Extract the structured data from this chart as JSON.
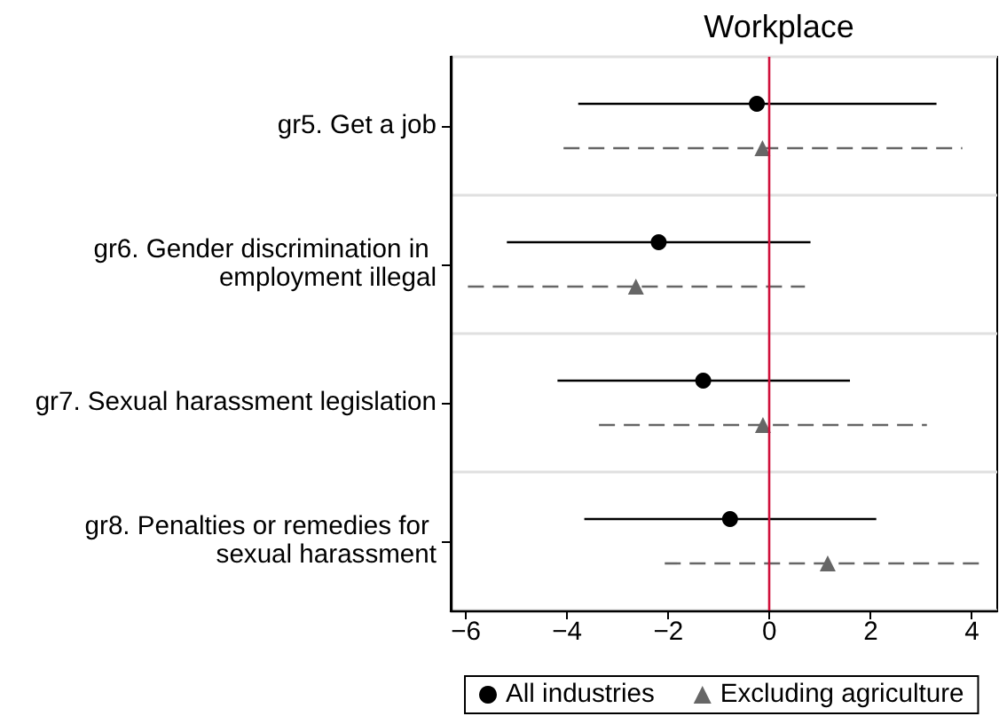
{
  "chart_data": {
    "type": "scatter",
    "title": "Workplace",
    "orientation": "horizontal",
    "categories": [
      "gr5. Get a job",
      "gr6. Gender discrimination in employment illegal",
      "gr7. Sexual harassment legislation",
      "gr8. Penalties or remedies for sexual harassment"
    ],
    "series": [
      {
        "name": "All industries",
        "color": "#000000",
        "marker": "circle",
        "line_style": "solid",
        "values": [
          -0.25,
          -2.19,
          -1.31,
          -0.78
        ],
        "errors": [
          [
            -3.78,
            3.3
          ],
          [
            -5.19,
            0.81
          ],
          [
            -4.19,
            1.59
          ],
          [
            -3.66,
            2.11
          ]
        ]
      },
      {
        "name": "Excluding agriculture",
        "color": "#666666",
        "marker": "triangle",
        "line_style": "dashed",
        "values": [
          -0.14,
          -2.64,
          -0.13,
          1.15
        ],
        "errors": [
          [
            -4.07,
            3.81
          ],
          [
            -5.96,
            0.7
          ],
          [
            -3.37,
            3.11
          ],
          [
            -2.07,
            4.25
          ]
        ]
      }
    ],
    "xlim": [
      -6.3,
      4.5
    ],
    "xticks": [
      {
        "value": -6,
        "label": "−6"
      },
      {
        "value": -4,
        "label": "−4"
      },
      {
        "value": -2,
        "label": "−2"
      },
      0,
      2,
      4
    ],
    "ref_lines": [
      {
        "axis": "x",
        "value": 0,
        "color": "#d0103a"
      }
    ],
    "grid": "y",
    "legend": "bottom"
  }
}
